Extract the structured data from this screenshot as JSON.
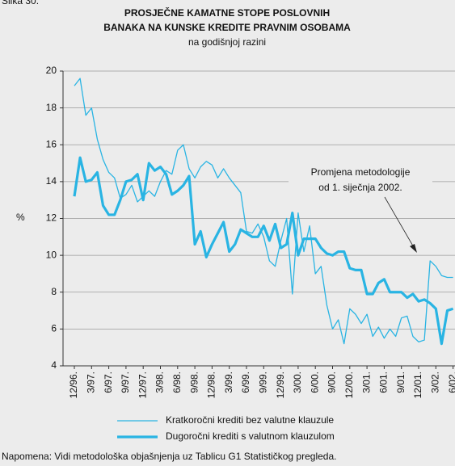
{
  "chart_data": {
    "type": "line",
    "figure_label": "Slika 30.",
    "title": [
      "PROSJEČNE KAMATNE STOPE POSLOVNIH",
      "BANAKA NA KUNSKE KREDITE PRAVNIM OSOBAMA"
    ],
    "subtitle": "na godišnjoj razini",
    "y_label": "%",
    "annotation": [
      "Promjena metodologije",
      "od 1. siječnja 2002."
    ],
    "note": "Napomena: Vidi metodološka objašnjenja uz Tablicu G1 Statističkog pregleda.",
    "categories": [
      "12/96.",
      null,
      null,
      "3/97.",
      null,
      null,
      "6/97.",
      null,
      null,
      "9/97.",
      null,
      null,
      "12/97.",
      null,
      null,
      "3/98.",
      null,
      null,
      "6/98.",
      null,
      null,
      "9/98.",
      null,
      null,
      "12/98.",
      null,
      null,
      "3/99.",
      null,
      null,
      "6/99.",
      null,
      null,
      "9/99.",
      null,
      null,
      "12/99.",
      null,
      null,
      "3/00.",
      null,
      null,
      "6/00.",
      null,
      null,
      "9/00.",
      null,
      null,
      "12/00.",
      null,
      null,
      "3/01.",
      null,
      null,
      "6/01.",
      null,
      null,
      "9/01.",
      null,
      null,
      "12/01.",
      null,
      null,
      "3/02.",
      null,
      null,
      "6/02."
    ],
    "series": [
      {
        "name": "Kratkoročni krediti bez valutne klauzule",
        "color": "#29b4e3",
        "width": 1.3,
        "values": [
          19.2,
          19.6,
          17.6,
          18.0,
          16.3,
          15.2,
          14.5,
          14.2,
          13.1,
          13.3,
          13.8,
          12.9,
          13.2,
          13.5,
          13.2,
          14.0,
          14.6,
          14.4,
          15.7,
          16.0,
          14.7,
          14.2,
          14.8,
          15.1,
          14.9,
          14.2,
          14.7,
          14.2,
          13.8,
          13.4,
          11.3,
          11.2,
          11.7,
          11.0,
          9.7,
          9.4,
          10.8,
          12.0,
          7.9,
          12.3,
          10.2,
          11.6,
          9.0,
          9.4,
          7.3,
          6.0,
          6.5,
          5.2,
          7.1,
          6.8,
          6.3,
          6.8,
          5.6,
          6.1,
          5.5,
          6.0,
          5.6,
          6.6,
          6.7,
          5.6,
          5.3,
          5.4,
          9.7,
          9.4,
          8.9,
          8.8,
          8.8
        ]
      },
      {
        "name": "Dugoročni krediti s valutnom klauzulom",
        "color": "#29b4e3",
        "width": 3.2,
        "values": [
          13.2,
          15.3,
          14.0,
          14.1,
          14.5,
          12.7,
          12.2,
          12.2,
          13.0,
          14.0,
          14.1,
          14.4,
          13.0,
          15.0,
          14.6,
          14.8,
          14.4,
          13.3,
          13.5,
          13.8,
          14.3,
          10.6,
          11.3,
          9.9,
          10.6,
          11.2,
          11.8,
          10.2,
          10.6,
          11.4,
          11.2,
          11.0,
          11.0,
          11.6,
          10.8,
          11.7,
          10.4,
          10.6,
          12.3,
          10.0,
          10.9,
          10.9,
          10.9,
          10.4,
          10.1,
          10.0,
          10.2,
          10.2,
          9.3,
          9.2,
          9.2,
          7.9,
          7.9,
          8.5,
          8.7,
          8.0,
          8.0,
          8.0,
          7.7,
          7.9,
          7.5,
          7.6,
          7.4,
          7.1,
          5.2,
          7.0,
          7.1
        ]
      }
    ],
    "ylim": [
      4,
      20
    ],
    "yticks": [
      4,
      6,
      8,
      10,
      12,
      14,
      16,
      18,
      20
    ],
    "grid": true
  }
}
